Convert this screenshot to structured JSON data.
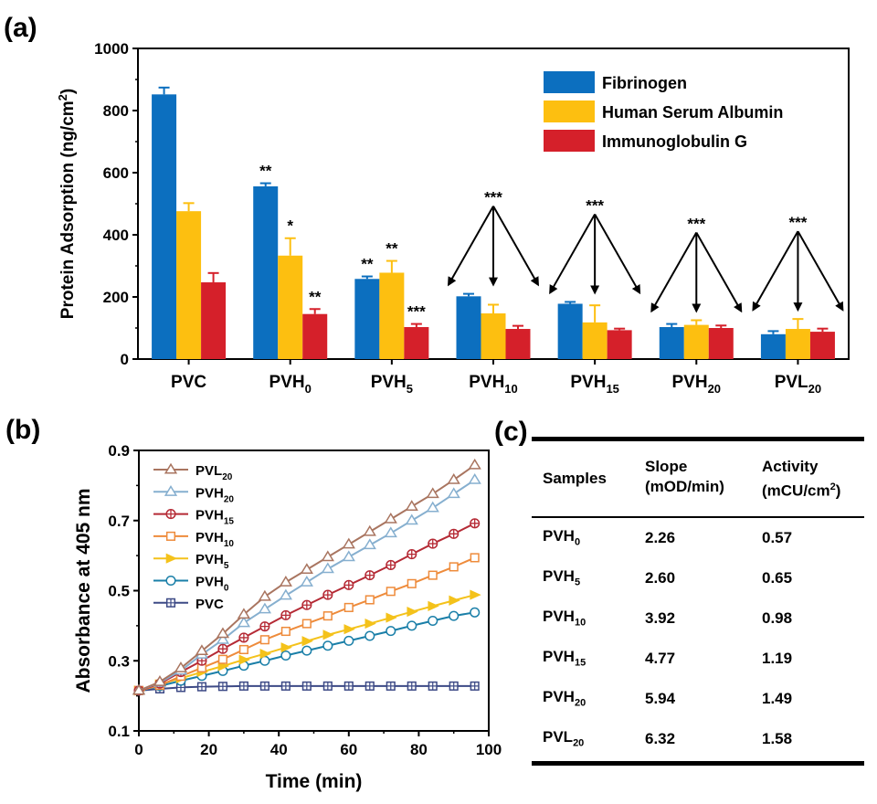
{
  "panel_labels": {
    "a": "(a)",
    "b": "(b)",
    "c": "(c)"
  },
  "chart_data": [
    {
      "type": "bar",
      "panel": "(a)",
      "ylabel_main": "Protein Adsorption (ng/cm",
      "ylabel_sup": "2",
      "ylabel_tail": ")",
      "ylim": [
        0,
        1000
      ],
      "yticks": [
        "0",
        "200",
        "400",
        "600",
        "800",
        "1000"
      ],
      "categories": [
        {
          "base": "PVC",
          "sub": ""
        },
        {
          "base": "PVH",
          "sub": "0"
        },
        {
          "base": "PVH",
          "sub": "5"
        },
        {
          "base": "PVH",
          "sub": "10"
        },
        {
          "base": "PVH",
          "sub": "15"
        },
        {
          "base": "PVH",
          "sub": "20"
        },
        {
          "base": "PVL",
          "sub": "20"
        }
      ],
      "series": [
        {
          "name": "Fibrinogen",
          "color": "#0c6fbf",
          "values": [
            852,
            556,
            258,
            202,
            178,
            103,
            80
          ],
          "errors": [
            22,
            10,
            8,
            8,
            6,
            10,
            10
          ]
        },
        {
          "name": "Human Serum Albumin",
          "color": "#fdbf10",
          "values": [
            476,
            333,
            278,
            147,
            118,
            110,
            97
          ],
          "errors": [
            26,
            56,
            38,
            28,
            55,
            15,
            32
          ]
        },
        {
          "name": "Immunoglobulin G",
          "color": "#d5202a",
          "values": [
            247,
            145,
            103,
            97,
            93,
            100,
            88
          ],
          "errors": [
            30,
            16,
            10,
            10,
            5,
            8,
            10
          ]
        }
      ],
      "significance": [
        {
          "category": 1,
          "series": 0,
          "label": "**"
        },
        {
          "category": 1,
          "series": 1,
          "label": "*"
        },
        {
          "category": 1,
          "series": 2,
          "label": "**"
        },
        {
          "category": 2,
          "series": 0,
          "label": "**"
        },
        {
          "category": 2,
          "series": 1,
          "label": "**"
        },
        {
          "category": 2,
          "series": 2,
          "label": "***"
        },
        {
          "category": 3,
          "label": "***",
          "arrows": true
        },
        {
          "category": 4,
          "label": "***",
          "arrows": true
        },
        {
          "category": 5,
          "label": "***",
          "arrows": true
        },
        {
          "category": 6,
          "label": "***",
          "arrows": true
        }
      ],
      "legend_position": "top-right"
    },
    {
      "type": "line",
      "panel": "(b)",
      "xlabel": "Time (min)",
      "ylabel": "Absorbance at 405 nm",
      "xlim": [
        0,
        100
      ],
      "ylim": [
        0.1,
        0.9
      ],
      "xticks": [
        "0",
        "20",
        "40",
        "60",
        "80",
        "100"
      ],
      "yticks": [
        "0.1",
        "0.3",
        "0.5",
        "0.7",
        "0.9"
      ],
      "x": [
        0,
        6,
        12,
        18,
        24,
        30,
        36,
        42,
        48,
        54,
        60,
        66,
        72,
        78,
        84,
        90,
        96
      ],
      "series": [
        {
          "name": "PVL",
          "sub": "20",
          "color": "#a97560",
          "marker": "triangle-up",
          "values": [
            0.215,
            0.24,
            0.279,
            0.328,
            0.377,
            0.432,
            0.483,
            0.524,
            0.56,
            0.596,
            0.632,
            0.668,
            0.704,
            0.74,
            0.776,
            0.816,
            0.858
          ]
        },
        {
          "name": "PVH",
          "sub": "20",
          "color": "#86afcf",
          "marker": "triangle-up",
          "values": [
            0.215,
            0.238,
            0.272,
            0.318,
            0.36,
            0.408,
            0.447,
            0.486,
            0.524,
            0.562,
            0.596,
            0.63,
            0.664,
            0.7,
            0.736,
            0.776,
            0.816
          ]
        },
        {
          "name": "PVH",
          "sub": "15",
          "color": "#b52a35",
          "marker": "circle-plus",
          "values": [
            0.215,
            0.235,
            0.268,
            0.3,
            0.334,
            0.366,
            0.398,
            0.43,
            0.459,
            0.488,
            0.516,
            0.544,
            0.573,
            0.604,
            0.634,
            0.662,
            0.692
          ]
        },
        {
          "name": "PVH",
          "sub": "10",
          "color": "#ee8b3b",
          "marker": "square",
          "values": [
            0.215,
            0.23,
            0.256,
            0.28,
            0.304,
            0.332,
            0.36,
            0.384,
            0.406,
            0.428,
            0.452,
            0.474,
            0.498,
            0.52,
            0.544,
            0.568,
            0.594
          ]
        },
        {
          "name": "PVH",
          "sub": "5",
          "color": "#f4c21b",
          "marker": "triangle-right",
          "values": [
            0.215,
            0.233,
            0.25,
            0.268,
            0.285,
            0.303,
            0.32,
            0.338,
            0.356,
            0.374,
            0.39,
            0.406,
            0.423,
            0.44,
            0.456,
            0.472,
            0.488
          ]
        },
        {
          "name": "PVH",
          "sub": "0",
          "color": "#1a7fa8",
          "marker": "circle",
          "values": [
            0.215,
            0.228,
            0.243,
            0.257,
            0.271,
            0.286,
            0.3,
            0.315,
            0.329,
            0.343,
            0.357,
            0.371,
            0.385,
            0.4,
            0.414,
            0.428,
            0.438
          ]
        },
        {
          "name": "PVC",
          "sub": "",
          "color": "#3d4a86",
          "marker": "square-plus",
          "values": [
            0.215,
            0.22,
            0.224,
            0.226,
            0.227,
            0.228,
            0.228,
            0.228,
            0.228,
            0.228,
            0.228,
            0.228,
            0.228,
            0.228,
            0.228,
            0.228,
            0.228
          ]
        }
      ],
      "legend_position": "top-left"
    }
  ],
  "table": {
    "panel": "(c)",
    "headers": [
      {
        "lines": [
          "Samples"
        ]
      },
      {
        "lines": [
          "Slope",
          "(mOD/min)"
        ]
      },
      {
        "lines": [
          "Activity",
          "(mCU/cm"
        ],
        "sup": "2",
        "tail": ")"
      }
    ],
    "rows": [
      {
        "base": "PVH",
        "sub": "0",
        "slope": "2.26",
        "activity": "0.57"
      },
      {
        "base": "PVH",
        "sub": "5",
        "slope": "2.60",
        "activity": "0.65"
      },
      {
        "base": "PVH",
        "sub": "10",
        "slope": "3.92",
        "activity": "0.98"
      },
      {
        "base": "PVH",
        "sub": "15",
        "slope": "4.77",
        "activity": "1.19"
      },
      {
        "base": "PVH",
        "sub": "20",
        "slope": "5.94",
        "activity": "1.49"
      },
      {
        "base": "PVL",
        "sub": "20",
        "slope": "6.32",
        "activity": "1.58"
      }
    ]
  }
}
